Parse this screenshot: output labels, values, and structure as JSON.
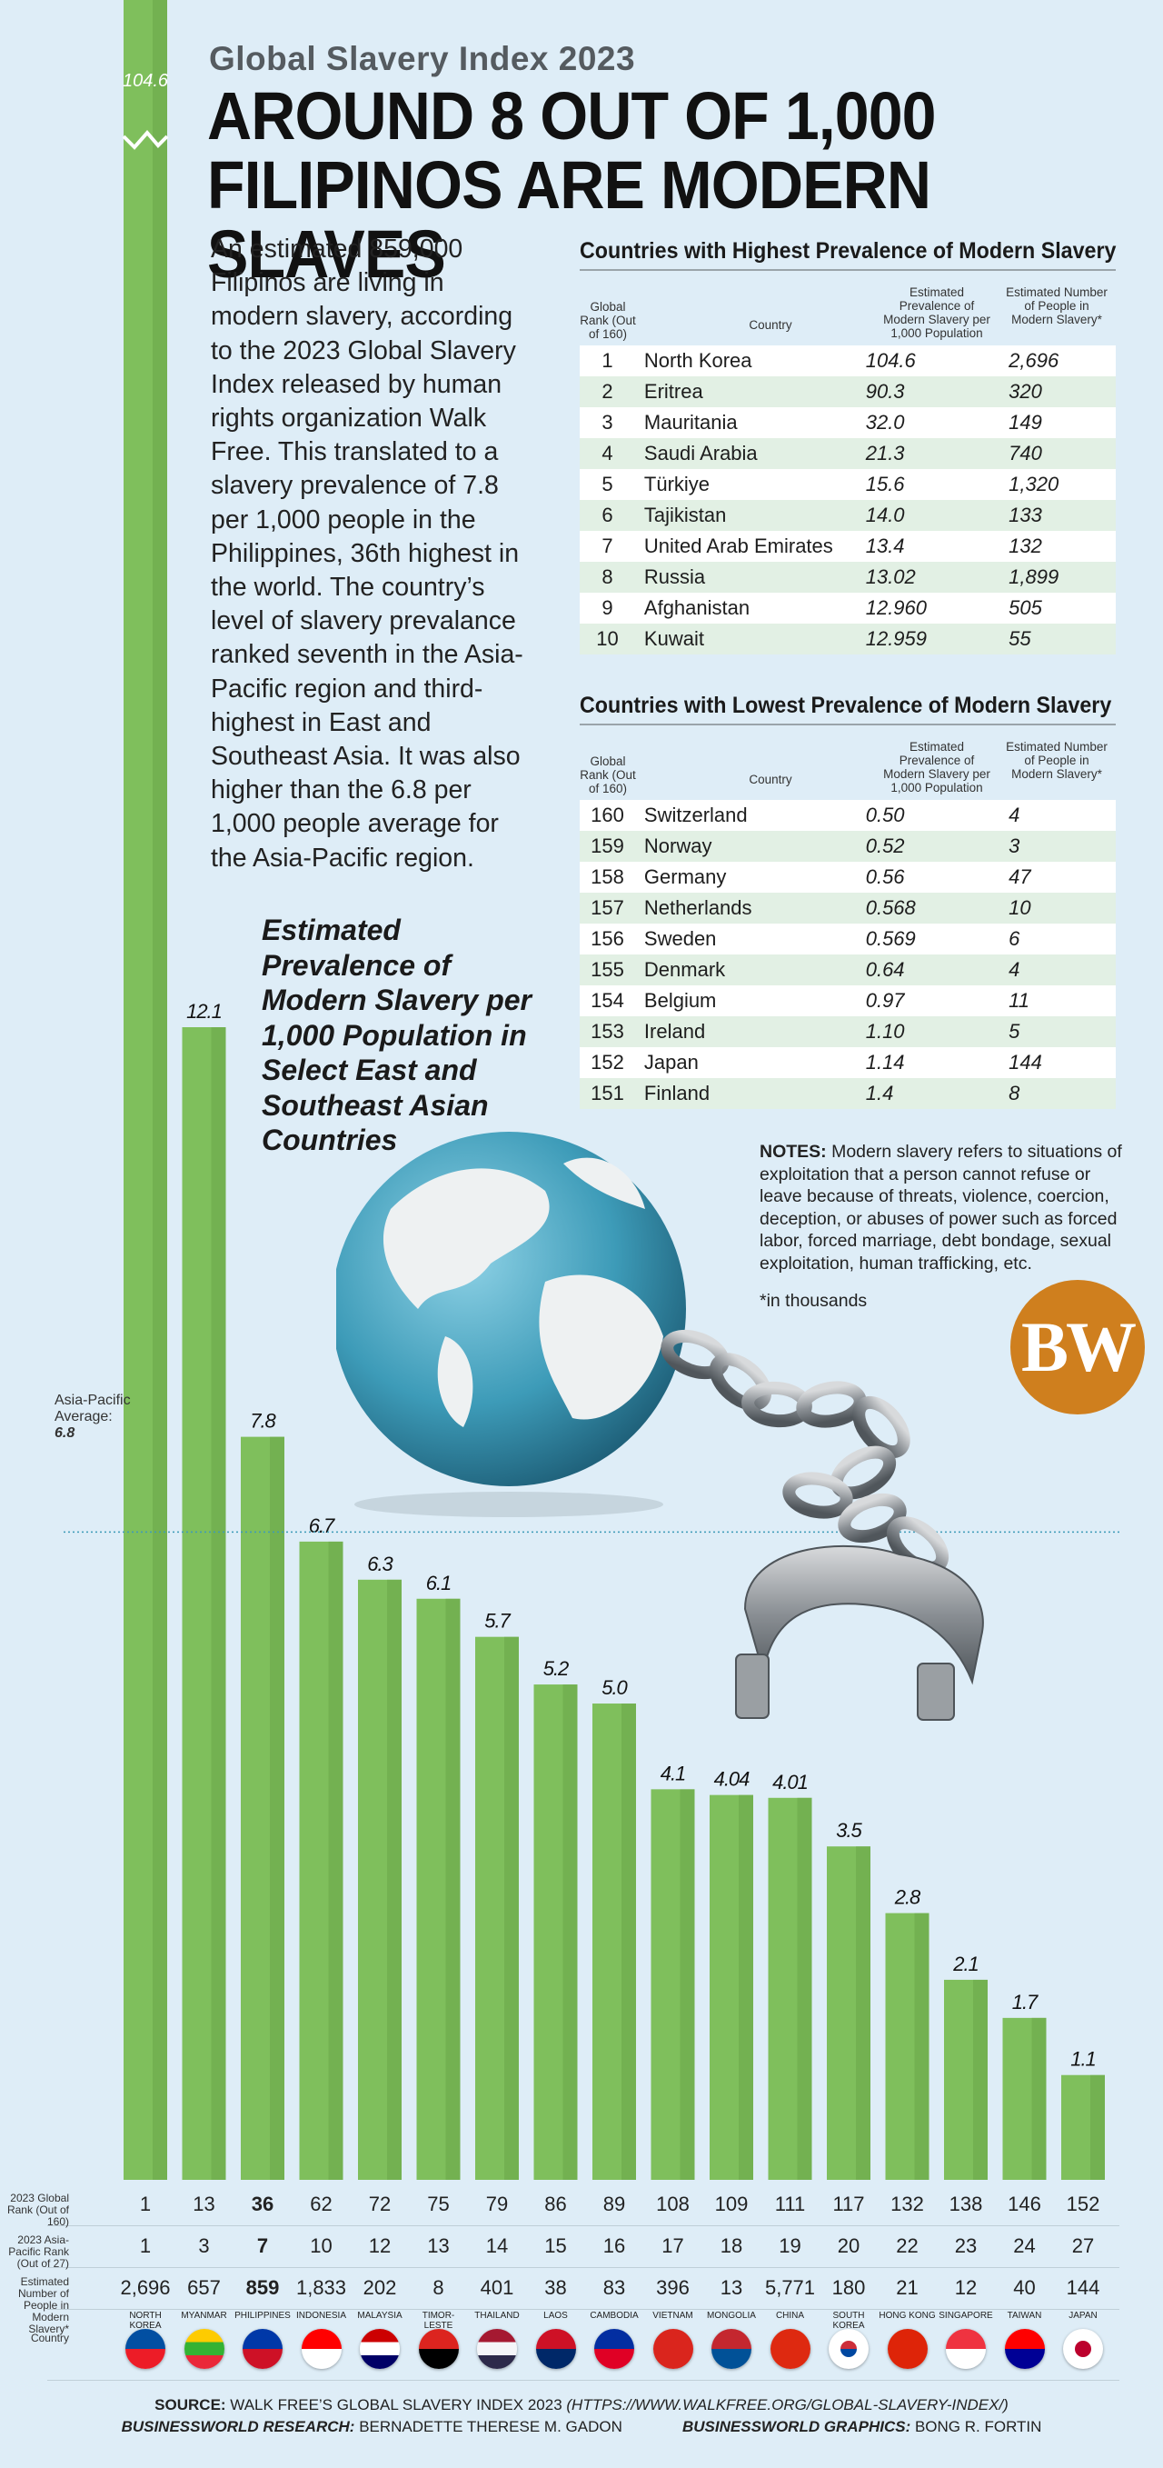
{
  "header": {
    "kicker": "Global Slavery Index 2023",
    "headline": "AROUND 8 OUT OF 1,000 FILIPINOS ARE MODERN SLAVES"
  },
  "intro": "An estimated 859,000 Filipinos are living in modern slavery, according to the 2023 Global Slavery Index released by human rights organization Walk Free. This translated to a slavery prevalence of 7.8 per 1,000 people in the Philippines, 36th highest in the world. The country’s level of slavery prevalance ranked seventh in the Asia-Pacific region and third-highest in East and Southeast Asia. It was also higher than the 6.8 per 1,000 people average for the Asia-Pacific region.",
  "highest_table": {
    "title": "Countries with Highest Prevalence of Modern Slavery",
    "columns": [
      "Global Rank (Out of 160)",
      "Country",
      "Estimated Prevalence of Modern Slavery per 1,000 Population",
      "Estimated Number of People in Modern Slavery*"
    ],
    "rows": [
      [
        "1",
        "North Korea",
        "104.6",
        "2,696"
      ],
      [
        "2",
        "Eritrea",
        "90.3",
        "320"
      ],
      [
        "3",
        "Mauritania",
        "32.0",
        "149"
      ],
      [
        "4",
        "Saudi Arabia",
        "21.3",
        "740"
      ],
      [
        "5",
        "Türkiye",
        "15.6",
        "1,320"
      ],
      [
        "6",
        "Tajikistan",
        "14.0",
        "133"
      ],
      [
        "7",
        "United Arab Emirates",
        "13.4",
        "132"
      ],
      [
        "8",
        "Russia",
        "13.02",
        "1,899"
      ],
      [
        "9",
        "Afghanistan",
        "12.960",
        "505"
      ],
      [
        "10",
        "Kuwait",
        "12.959",
        "55"
      ]
    ]
  },
  "lowest_table": {
    "title": "Countries with Lowest Prevalence of Modern Slavery",
    "columns": [
      "Global Rank (Out of 160)",
      "Country",
      "Estimated Prevalence of Modern Slavery per 1,000 Population",
      "Estimated Number of People in Modern Slavery*"
    ],
    "rows": [
      [
        "160",
        "Switzerland",
        "0.50",
        "4"
      ],
      [
        "159",
        "Norway",
        "0.52",
        "3"
      ],
      [
        "158",
        "Germany",
        "0.56",
        "47"
      ],
      [
        "157",
        "Netherlands",
        "0.568",
        "10"
      ],
      [
        "156",
        "Sweden",
        "0.569",
        "6"
      ],
      [
        "155",
        "Denmark",
        "0.64",
        "4"
      ],
      [
        "154",
        "Belgium",
        "0.97",
        "11"
      ],
      [
        "153",
        "Ireland",
        "1.10",
        "5"
      ],
      [
        "152",
        "Japan",
        "1.14",
        "144"
      ],
      [
        "151",
        "Finland",
        "1.4",
        "8"
      ]
    ]
  },
  "notes": {
    "label": "NOTES:",
    "text": " Modern slavery refers to situations of exploitation that a person cannot refuse or leave because of threats, violence, coercion, deception, or abuses of power such as forced labor, forced marriage, debt bondage, sexual exploitation, human trafficking, etc.",
    "footnote": "*in thousands"
  },
  "logo": "BW",
  "chart_data": {
    "type": "bar",
    "title": "Estimated Prevalence of Modern Slavery per 1,000 Population in Select East and Southeast Asian Countries",
    "categories": [
      "NORTH KOREA",
      "MYANMAR",
      "PHILIPPINES",
      "INDONESIA",
      "MALAYSIA",
      "TIMOR-LESTE",
      "THAILAND",
      "LAOS",
      "CAMBODIA",
      "VIETNAM",
      "MONGOLIA",
      "CHINA",
      "SOUTH KOREA",
      "HONG KONG",
      "SINGAPORE",
      "TAIWAN",
      "JAPAN"
    ],
    "values": [
      104.6,
      12.1,
      7.8,
      6.7,
      6.3,
      6.1,
      5.7,
      5.2,
      5.0,
      4.1,
      4.04,
      4.01,
      3.5,
      2.8,
      2.1,
      1.7,
      1.1
    ],
    "value_labels": [
      "104.6",
      "12.1",
      "7.8",
      "6.7",
      "6.3",
      "6.1",
      "5.7",
      "5.2",
      "5.0",
      "4.1",
      "4.04",
      "4.01",
      "3.5",
      "2.8",
      "2.1",
      "1.7",
      "1.1"
    ],
    "axis_break": true,
    "reference_line": {
      "label": "Asia-Pacific Average:",
      "value": 6.8,
      "value_label": "6.8"
    },
    "highlight": "PHILIPPINES",
    "bar_color": "#7fbf5c",
    "ylim": [
      0,
      12.8
    ]
  },
  "bottom_table": {
    "row_labels": [
      "2023 Global Rank (Out of 160)",
      "2023 Asia-Pacific Rank (Out of 27)",
      "Estimated Number of People in Modern Slavery*",
      "Country"
    ],
    "global_rank": [
      "1",
      "13",
      "36",
      "62",
      "72",
      "75",
      "79",
      "86",
      "89",
      "108",
      "109",
      "111",
      "117",
      "132",
      "138",
      "146",
      "152"
    ],
    "asia_rank": [
      "1",
      "3",
      "7",
      "10",
      "12",
      "13",
      "14",
      "15",
      "16",
      "17",
      "18",
      "19",
      "20",
      "22",
      "23",
      "24",
      "27"
    ],
    "people": [
      "2,696",
      "657",
      "859",
      "1,833",
      "202",
      "8",
      "401",
      "38",
      "83",
      "396",
      "13",
      "5,771",
      "180",
      "21",
      "12",
      "40",
      "144"
    ]
  },
  "footer": {
    "source_label": "SOURCE:",
    "source_text": " WALK FREE’S GLOBAL SLAVERY INDEX 2023 ",
    "source_url": "(HTTPS://WWW.WALKFREE.ORG/GLOBAL-SLAVERY-INDEX/)",
    "research_label": "BUSINESSWORLD RESEARCH:",
    "research_name": " BERNADETTE THERESE M. GADON",
    "graphics_label": "BUSINESSWORLD GRAPHICS:",
    "graphics_name": " BONG R. FORTIN"
  }
}
